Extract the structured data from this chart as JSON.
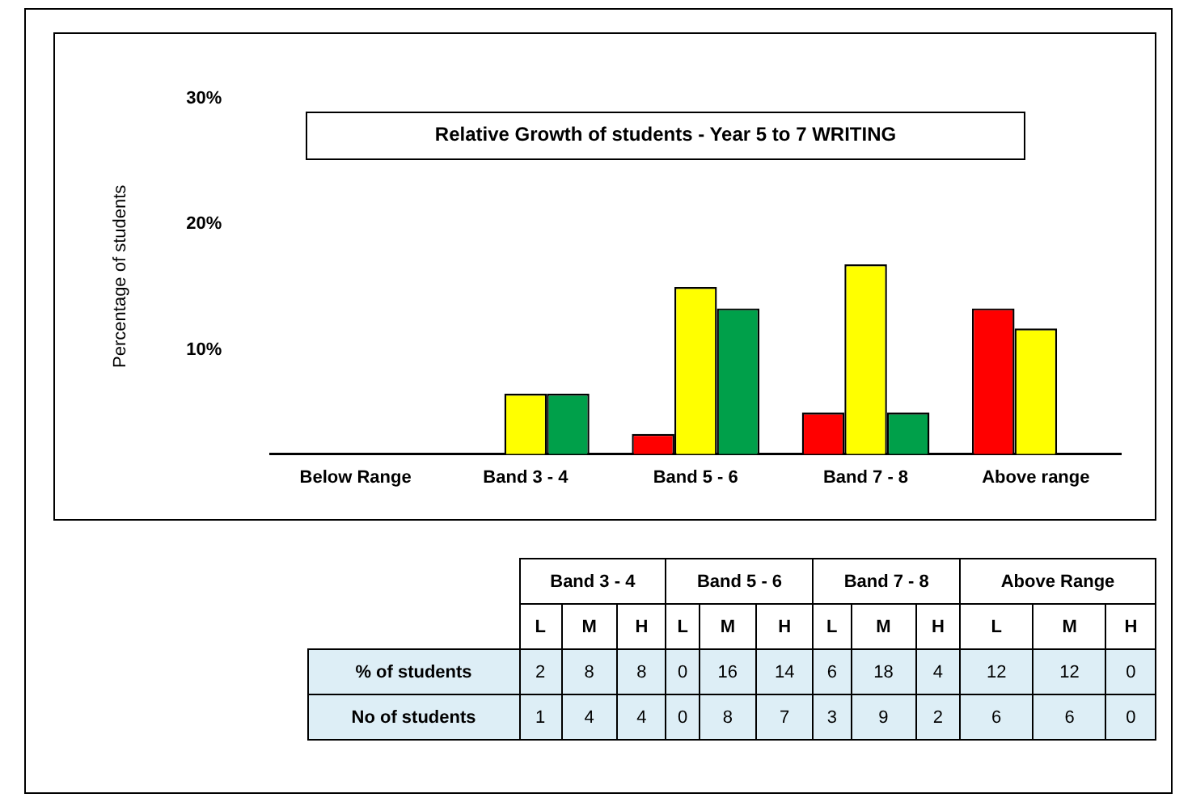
{
  "chart_data": [
    {
      "type": "bar",
      "title": "Relative Growth of students - Year 5 to 7 WRITING",
      "ylabel": "Percentage of students",
      "categories": [
        "Below Range",
        "Band 3 - 4",
        "Band 5 - 6",
        "Band 7 - 8",
        "Above range"
      ],
      "series": [
        {
          "color": "#ff0000",
          "values": [
            null,
            null,
            3.3,
            5,
            13.3
          ]
        },
        {
          "color": "#ffff00",
          "values": [
            null,
            6.5,
            15,
            16.8,
            11.7
          ]
        },
        {
          "color": "#00a04a",
          "values": [
            null,
            6.5,
            13.3,
            5,
            null
          ]
        }
      ],
      "ylim": [
        1.7,
        30
      ],
      "yticks": [
        {
          "value": 10,
          "label": "10%"
        },
        {
          "value": 20,
          "label": "20%"
        },
        {
          "value": 30,
          "label": "30%"
        }
      ],
      "grid": false,
      "legend": false
    },
    {
      "type": "other",
      "categories": [
        "L",
        "M",
        "H",
        "L",
        "M",
        "H",
        "L",
        "M",
        "H",
        "L",
        "M",
        "H"
      ],
      "annotations": [
        "Band 3 - 4",
        "Band 5 - 6",
        "Band 7 - 8",
        "Above Range"
      ],
      "series": [
        {
          "name": "% of students",
          "values": [
            2,
            8,
            8,
            0,
            16,
            14,
            6,
            18,
            4,
            12,
            12,
            0
          ]
        },
        {
          "name": "No of students",
          "values": [
            1,
            4,
            4,
            0,
            8,
            7,
            3,
            9,
            2,
            6,
            6,
            0
          ]
        }
      ],
      "data_labels": true
    }
  ]
}
